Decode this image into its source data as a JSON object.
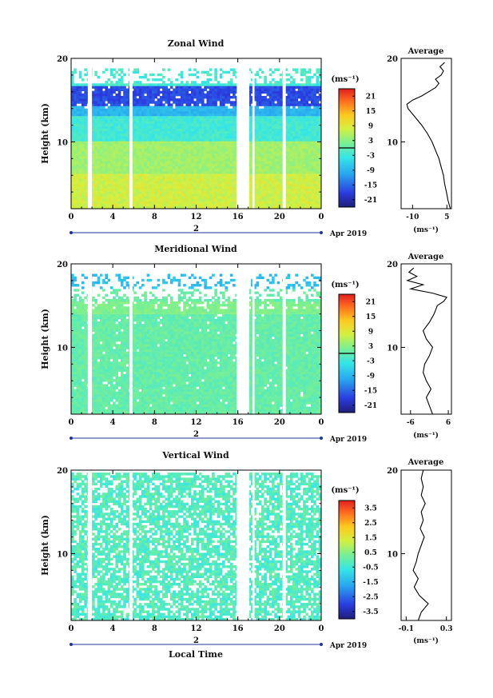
{
  "page": {
    "xlabel": "Local Time",
    "date_label": "Apr 2019",
    "day_label": "2",
    "colorbar_unit": "(ms⁻¹)",
    "avg_unit": "(ms⁻¹)",
    "avg_title": "Average"
  },
  "chart_data": [
    {
      "type": "heatmap",
      "title": "Zonal Wind",
      "ylabel": "Height (km)",
      "xlabel": "",
      "x_ticks": [
        "0",
        "4",
        "8",
        "12",
        "16",
        "20",
        "0"
      ],
      "y_ticks": [
        "10",
        "20"
      ],
      "xlim": [
        0,
        24
      ],
      "ylim": [
        2,
        20
      ],
      "colorbar_ticks": [
        "21",
        "15",
        "9",
        "3",
        "-3",
        "-9",
        "-15",
        "-21"
      ],
      "colorbar_range": [
        -24,
        24
      ],
      "data_gaps_hours": [
        [
          1.6,
          2.0
        ],
        [
          5.6,
          5.9
        ],
        [
          15.9,
          17.1
        ],
        [
          17.4,
          17.6
        ],
        [
          20.3,
          20.6
        ]
      ],
      "profile_type": "line",
      "profile_xticks": [
        "-10",
        "5"
      ],
      "profile_xlim": [
        -15,
        7
      ],
      "profile": [
        {
          "h": 2.0,
          "v": 6.5
        },
        {
          "h": 3.0,
          "v": 5.5
        },
        {
          "h": 4.0,
          "v": 4.8
        },
        {
          "h": 5.0,
          "v": 4.0
        },
        {
          "h": 6.0,
          "v": 3.5
        },
        {
          "h": 7.0,
          "v": 2.5
        },
        {
          "h": 8.0,
          "v": 1.5
        },
        {
          "h": 9.0,
          "v": 0.0
        },
        {
          "h": 10.0,
          "v": -1.5
        },
        {
          "h": 11.0,
          "v": -3.5
        },
        {
          "h": 12.0,
          "v": -6.0
        },
        {
          "h": 13.0,
          "v": -9.0
        },
        {
          "h": 14.0,
          "v": -12.0
        },
        {
          "h": 14.5,
          "v": -12.5
        },
        {
          "h": 15.0,
          "v": -10.0
        },
        {
          "h": 15.5,
          "v": -6.0
        },
        {
          "h": 16.0,
          "v": -3.0
        },
        {
          "h": 16.5,
          "v": 0.0
        },
        {
          "h": 17.0,
          "v": 1.5
        },
        {
          "h": 17.5,
          "v": 0.0
        },
        {
          "h": 18.0,
          "v": 2.5
        },
        {
          "h": 18.5,
          "v": 3.5
        },
        {
          "h": 19.0,
          "v": 2.0
        },
        {
          "h": 19.5,
          "v": 4.0
        }
      ]
    },
    {
      "type": "heatmap",
      "title": "Meridional Wind",
      "ylabel": "Height (km)",
      "xlabel": "",
      "x_ticks": [
        "0",
        "4",
        "8",
        "12",
        "16",
        "20",
        "0"
      ],
      "y_ticks": [
        "10",
        "20"
      ],
      "xlim": [
        0,
        24
      ],
      "ylim": [
        2,
        20
      ],
      "colorbar_ticks": [
        "21",
        "15",
        "9",
        "3",
        "-3",
        "-9",
        "-15",
        "-21"
      ],
      "colorbar_range": [
        -24,
        24
      ],
      "data_gaps_hours": [
        [
          1.6,
          2.0
        ],
        [
          5.6,
          5.9
        ],
        [
          15.9,
          17.1
        ],
        [
          17.4,
          17.6
        ],
        [
          20.3,
          20.6
        ]
      ],
      "profile_type": "line",
      "profile_xticks": [
        "-6",
        "6"
      ],
      "profile_xlim": [
        -9,
        7
      ],
      "profile": [
        {
          "h": 2.0,
          "v": 1.0
        },
        {
          "h": 3.0,
          "v": 0.0
        },
        {
          "h": 4.0,
          "v": -1.0
        },
        {
          "h": 5.0,
          "v": 0.5
        },
        {
          "h": 6.0,
          "v": -1.0
        },
        {
          "h": 7.0,
          "v": -2.0
        },
        {
          "h": 8.0,
          "v": -1.5
        },
        {
          "h": 9.0,
          "v": 0.0
        },
        {
          "h": 10.0,
          "v": 1.0
        },
        {
          "h": 11.0,
          "v": -1.0
        },
        {
          "h": 12.0,
          "v": -2.0
        },
        {
          "h": 13.0,
          "v": 0.0
        },
        {
          "h": 14.0,
          "v": 1.5
        },
        {
          "h": 15.0,
          "v": 2.5
        },
        {
          "h": 15.5,
          "v": 4.5
        },
        {
          "h": 16.0,
          "v": 5.5
        },
        {
          "h": 16.5,
          "v": 1.0
        },
        {
          "h": 17.0,
          "v": -6.0
        },
        {
          "h": 17.5,
          "v": -2.0
        },
        {
          "h": 18.0,
          "v": -7.0
        },
        {
          "h": 18.5,
          "v": -4.0
        },
        {
          "h": 19.0,
          "v": -6.5
        },
        {
          "h": 19.5,
          "v": -5.0
        }
      ]
    },
    {
      "type": "heatmap",
      "title": "Vertical Wind",
      "ylabel": "Height (km)",
      "xlabel": "Local Time",
      "x_ticks": [
        "0",
        "4",
        "8",
        "12",
        "16",
        "20",
        "0"
      ],
      "y_ticks": [
        "10",
        "20"
      ],
      "xlim": [
        0,
        24
      ],
      "ylim": [
        2,
        20
      ],
      "colorbar_ticks": [
        "3.5",
        "2.5",
        "1.5",
        "0.5",
        "-0.5",
        "-1.5",
        "-2.5",
        "-3.5"
      ],
      "colorbar_range": [
        -4,
        4
      ],
      "data_gaps_hours": [
        [
          1.6,
          2.0
        ],
        [
          5.6,
          5.9
        ],
        [
          15.9,
          17.1
        ],
        [
          17.4,
          17.6
        ],
        [
          20.3,
          20.6
        ]
      ],
      "profile_type": "line",
      "profile_xticks": [
        "-0.1",
        "0.3"
      ],
      "profile_xlim": [
        -0.15,
        0.35
      ],
      "profile": [
        {
          "h": 2.0,
          "v": 0.02
        },
        {
          "h": 3.0,
          "v": 0.05
        },
        {
          "h": 4.0,
          "v": 0.12
        },
        {
          "h": 5.0,
          "v": 0.03
        },
        {
          "h": 6.0,
          "v": -0.02
        },
        {
          "h": 7.0,
          "v": 0.02
        },
        {
          "h": 8.0,
          "v": -0.03
        },
        {
          "h": 9.0,
          "v": 0.0
        },
        {
          "h": 10.0,
          "v": 0.02
        },
        {
          "h": 11.0,
          "v": 0.05
        },
        {
          "h": 12.0,
          "v": 0.08
        },
        {
          "h": 13.0,
          "v": 0.04
        },
        {
          "h": 14.0,
          "v": 0.07
        },
        {
          "h": 15.0,
          "v": 0.05
        },
        {
          "h": 16.0,
          "v": 0.09
        },
        {
          "h": 17.0,
          "v": 0.05
        },
        {
          "h": 18.0,
          "v": 0.07
        },
        {
          "h": 19.0,
          "v": 0.05
        },
        {
          "h": 20.0,
          "v": 0.07
        }
      ]
    }
  ]
}
